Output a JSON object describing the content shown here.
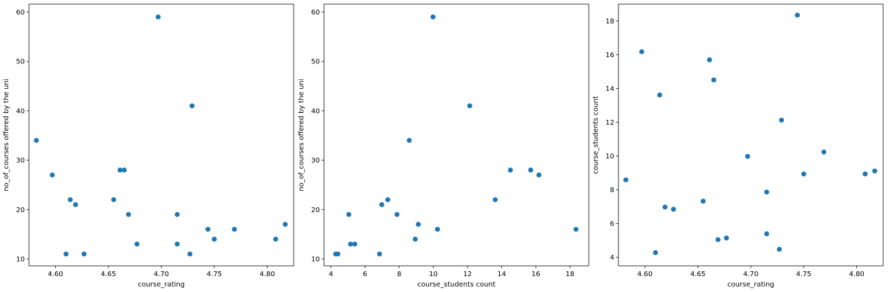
{
  "colors": {
    "marker": "#1f77b4"
  },
  "chart_data": [
    {
      "type": "scatter",
      "xlabel": "course_rating",
      "ylabel": "no_of_courses offered by the uni",
      "xlim": [
        4.575,
        4.825
      ],
      "ylim": [
        8.6,
        61.6
      ],
      "xticks": [
        4.6,
        4.65,
        4.7,
        4.75,
        4.8
      ],
      "xtick_labels": [
        "4.60",
        "4.65",
        "4.70",
        "4.75",
        "4.80"
      ],
      "yticks": [
        10,
        20,
        30,
        40,
        50,
        60
      ],
      "ytick_labels": [
        "10",
        "20",
        "30",
        "40",
        "50",
        "60"
      ],
      "points": [
        [
          4.582,
          34
        ],
        [
          4.597,
          27
        ],
        [
          4.61,
          11
        ],
        [
          4.614,
          22
        ],
        [
          4.619,
          21
        ],
        [
          4.627,
          11
        ],
        [
          4.655,
          22
        ],
        [
          4.661,
          28
        ],
        [
          4.665,
          28
        ],
        [
          4.669,
          19
        ],
        [
          4.677,
          13
        ],
        [
          4.697,
          59
        ],
        [
          4.715,
          19
        ],
        [
          4.715,
          13
        ],
        [
          4.727,
          11
        ],
        [
          4.729,
          41
        ],
        [
          4.744,
          16
        ],
        [
          4.75,
          14
        ],
        [
          4.769,
          16
        ],
        [
          4.808,
          14
        ],
        [
          4.817,
          17
        ]
      ]
    },
    {
      "type": "scatter",
      "xlabel": "course_students count",
      "ylabel": "no_of_courses offered by the uni",
      "xlim": [
        3.6,
        19.1
      ],
      "ylim": [
        8.6,
        61.6
      ],
      "xticks": [
        4,
        6,
        8,
        10,
        12,
        14,
        16,
        18
      ],
      "xtick_labels": [
        "4",
        "6",
        "8",
        "10",
        "12",
        "14",
        "16",
        "18"
      ],
      "yticks": [
        10,
        20,
        30,
        40,
        50,
        60
      ],
      "ytick_labels": [
        "10",
        "20",
        "30",
        "40",
        "50",
        "60"
      ],
      "points": [
        [
          4.28,
          11
        ],
        [
          4.41,
          11
        ],
        [
          5.05,
          19
        ],
        [
          5.15,
          13
        ],
        [
          5.4,
          13
        ],
        [
          6.85,
          11
        ],
        [
          6.98,
          21
        ],
        [
          7.33,
          22
        ],
        [
          7.87,
          19
        ],
        [
          8.59,
          34
        ],
        [
          8.94,
          14
        ],
        [
          9.12,
          17
        ],
        [
          9.98,
          59
        ],
        [
          10.24,
          16
        ],
        [
          12.13,
          41
        ],
        [
          13.62,
          22
        ],
        [
          14.51,
          28
        ],
        [
          15.7,
          28
        ],
        [
          16.18,
          27
        ],
        [
          18.35,
          16
        ]
      ]
    },
    {
      "type": "scatter",
      "xlabel": "course_rating",
      "ylabel": "course_students count",
      "xlim": [
        4.575,
        4.825
      ],
      "ylim": [
        3.5,
        19.0
      ],
      "xticks": [
        4.6,
        4.65,
        4.7,
        4.75,
        4.8
      ],
      "xtick_labels": [
        "4.60",
        "4.65",
        "4.70",
        "4.75",
        "4.80"
      ],
      "yticks": [
        4,
        6,
        8,
        10,
        12,
        14,
        16,
        18
      ],
      "ytick_labels": [
        "4",
        "6",
        "8",
        "10",
        "12",
        "14",
        "16",
        "18"
      ],
      "points": [
        [
          4.582,
          8.59
        ],
        [
          4.597,
          16.18
        ],
        [
          4.61,
          4.28
        ],
        [
          4.614,
          13.62
        ],
        [
          4.619,
          6.98
        ],
        [
          4.627,
          6.85
        ],
        [
          4.655,
          7.33
        ],
        [
          4.661,
          15.7
        ],
        [
          4.665,
          14.51
        ],
        [
          4.669,
          5.05
        ],
        [
          4.677,
          5.15
        ],
        [
          4.697,
          9.98
        ],
        [
          4.715,
          7.87
        ],
        [
          4.715,
          5.4
        ],
        [
          4.727,
          4.48
        ],
        [
          4.729,
          12.13
        ],
        [
          4.744,
          18.35
        ],
        [
          4.75,
          8.94
        ],
        [
          4.769,
          10.24
        ],
        [
          4.808,
          8.94
        ],
        [
          4.817,
          9.12
        ]
      ]
    }
  ]
}
